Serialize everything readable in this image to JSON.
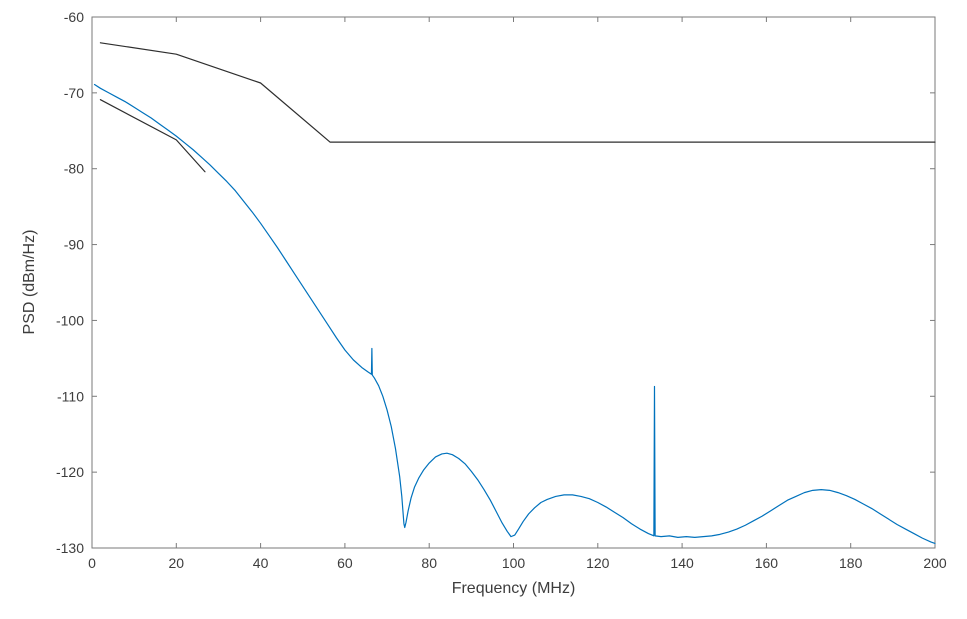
{
  "chart_data": {
    "type": "line",
    "title": "",
    "xlabel": "Frequency (MHz)",
    "ylabel": "PSD (dBm/Hz)",
    "xlim": [
      0,
      200
    ],
    "ylim": [
      -130,
      -60
    ],
    "xticks": [
      0,
      20,
      40,
      60,
      80,
      100,
      120,
      140,
      160,
      180,
      200
    ],
    "yticks": [
      -130,
      -120,
      -110,
      -100,
      -90,
      -80,
      -70,
      -60
    ],
    "grid": false,
    "legend": null,
    "axis_color": "#7a7a7a",
    "tick_label_color": "#3d3d3d",
    "background": "#ffffff",
    "series": [
      {
        "name": "measured-psd",
        "color": "#0072BD",
        "width": 1.2,
        "points": [
          [
            0.6,
            -68.9
          ],
          [
            2,
            -69.4
          ],
          [
            4,
            -70.0
          ],
          [
            6,
            -70.6
          ],
          [
            8,
            -71.2
          ],
          [
            10,
            -71.9
          ],
          [
            12,
            -72.6
          ],
          [
            14,
            -73.3
          ],
          [
            16,
            -74.1
          ],
          [
            18,
            -74.9
          ],
          [
            20,
            -75.7
          ],
          [
            22,
            -76.6
          ],
          [
            24,
            -77.5
          ],
          [
            26,
            -78.5
          ],
          [
            28,
            -79.5
          ],
          [
            30,
            -80.6
          ],
          [
            32,
            -81.7
          ],
          [
            34,
            -82.9
          ],
          [
            36,
            -84.3
          ],
          [
            38,
            -85.7
          ],
          [
            40,
            -87.2
          ],
          [
            42,
            -88.8
          ],
          [
            44,
            -90.4
          ],
          [
            46,
            -92.1
          ],
          [
            48,
            -93.8
          ],
          [
            50,
            -95.5
          ],
          [
            52,
            -97.2
          ],
          [
            54,
            -98.9
          ],
          [
            56,
            -100.6
          ],
          [
            58,
            -102.3
          ],
          [
            60,
            -103.9
          ],
          [
            62,
            -105.2
          ],
          [
            64,
            -106.2
          ],
          [
            65.5,
            -106.8
          ],
          [
            66.3,
            -107.1
          ],
          [
            66.4,
            -103.7
          ],
          [
            66.5,
            -107.2
          ],
          [
            67,
            -107.6
          ],
          [
            68,
            -108.6
          ],
          [
            69,
            -110.0
          ],
          [
            70,
            -111.8
          ],
          [
            71,
            -114.0
          ],
          [
            72,
            -116.9
          ],
          [
            73,
            -120.6
          ],
          [
            73.5,
            -123.2
          ],
          [
            74.0,
            -126.8
          ],
          [
            74.2,
            -127.3
          ],
          [
            74.5,
            -126.6
          ],
          [
            75,
            -125.1
          ],
          [
            75.7,
            -123.4
          ],
          [
            76.5,
            -122.0
          ],
          [
            77.5,
            -120.8
          ],
          [
            78.7,
            -119.7
          ],
          [
            80,
            -118.8
          ],
          [
            81.5,
            -118.0
          ],
          [
            83,
            -117.6
          ],
          [
            84.2,
            -117.5
          ],
          [
            85.5,
            -117.7
          ],
          [
            87,
            -118.2
          ],
          [
            88.5,
            -118.9
          ],
          [
            90,
            -119.9
          ],
          [
            91.5,
            -121.0
          ],
          [
            93,
            -122.3
          ],
          [
            94.5,
            -123.7
          ],
          [
            96,
            -125.3
          ],
          [
            97.3,
            -126.7
          ],
          [
            98.5,
            -127.8
          ],
          [
            99.4,
            -128.5
          ],
          [
            100.3,
            -128.3
          ],
          [
            101.2,
            -127.5
          ],
          [
            102.3,
            -126.5
          ],
          [
            103.6,
            -125.5
          ],
          [
            105,
            -124.7
          ],
          [
            106.5,
            -124.0
          ],
          [
            108,
            -123.6
          ],
          [
            110,
            -123.2
          ],
          [
            112,
            -123.0
          ],
          [
            114,
            -123.0
          ],
          [
            116,
            -123.2
          ],
          [
            118,
            -123.5
          ],
          [
            120,
            -124.0
          ],
          [
            122,
            -124.6
          ],
          [
            124,
            -125.3
          ],
          [
            126,
            -126.0
          ],
          [
            128,
            -126.8
          ],
          [
            130,
            -127.5
          ],
          [
            132,
            -128.1
          ],
          [
            133.3,
            -128.4
          ],
          [
            133.45,
            -108.7
          ],
          [
            133.6,
            -128.4
          ],
          [
            135,
            -128.5
          ],
          [
            137,
            -128.4
          ],
          [
            139,
            -128.6
          ],
          [
            141,
            -128.5
          ],
          [
            143,
            -128.6
          ],
          [
            145,
            -128.5
          ],
          [
            147,
            -128.4
          ],
          [
            149,
            -128.2
          ],
          [
            151,
            -127.9
          ],
          [
            153,
            -127.5
          ],
          [
            155,
            -127.0
          ],
          [
            157,
            -126.4
          ],
          [
            159,
            -125.8
          ],
          [
            161,
            -125.1
          ],
          [
            163,
            -124.4
          ],
          [
            165,
            -123.7
          ],
          [
            167,
            -123.2
          ],
          [
            169,
            -122.7
          ],
          [
            171,
            -122.4
          ],
          [
            173,
            -122.3
          ],
          [
            175,
            -122.4
          ],
          [
            177,
            -122.7
          ],
          [
            179,
            -123.1
          ],
          [
            181,
            -123.6
          ],
          [
            183,
            -124.2
          ],
          [
            185,
            -124.8
          ],
          [
            187,
            -125.5
          ],
          [
            189,
            -126.2
          ],
          [
            191,
            -126.9
          ],
          [
            193,
            -127.5
          ],
          [
            195,
            -128.1
          ],
          [
            197,
            -128.7
          ],
          [
            199,
            -129.2
          ],
          [
            200,
            -129.4
          ]
        ]
      },
      {
        "name": "psd-mask-upper",
        "color": "#2e2e2e",
        "width": 1.2,
        "points": [
          [
            2,
            -63.4
          ],
          [
            20,
            -64.9
          ],
          [
            40,
            -68.7
          ],
          [
            56.5,
            -76.5
          ],
          [
            200,
            -76.5
          ]
        ]
      },
      {
        "name": "psd-mask-lower",
        "color": "#2e2e2e",
        "width": 1.2,
        "points": [
          [
            2,
            -70.9
          ],
          [
            20,
            -76.2
          ],
          [
            26.8,
            -80.4
          ]
        ]
      }
    ]
  }
}
